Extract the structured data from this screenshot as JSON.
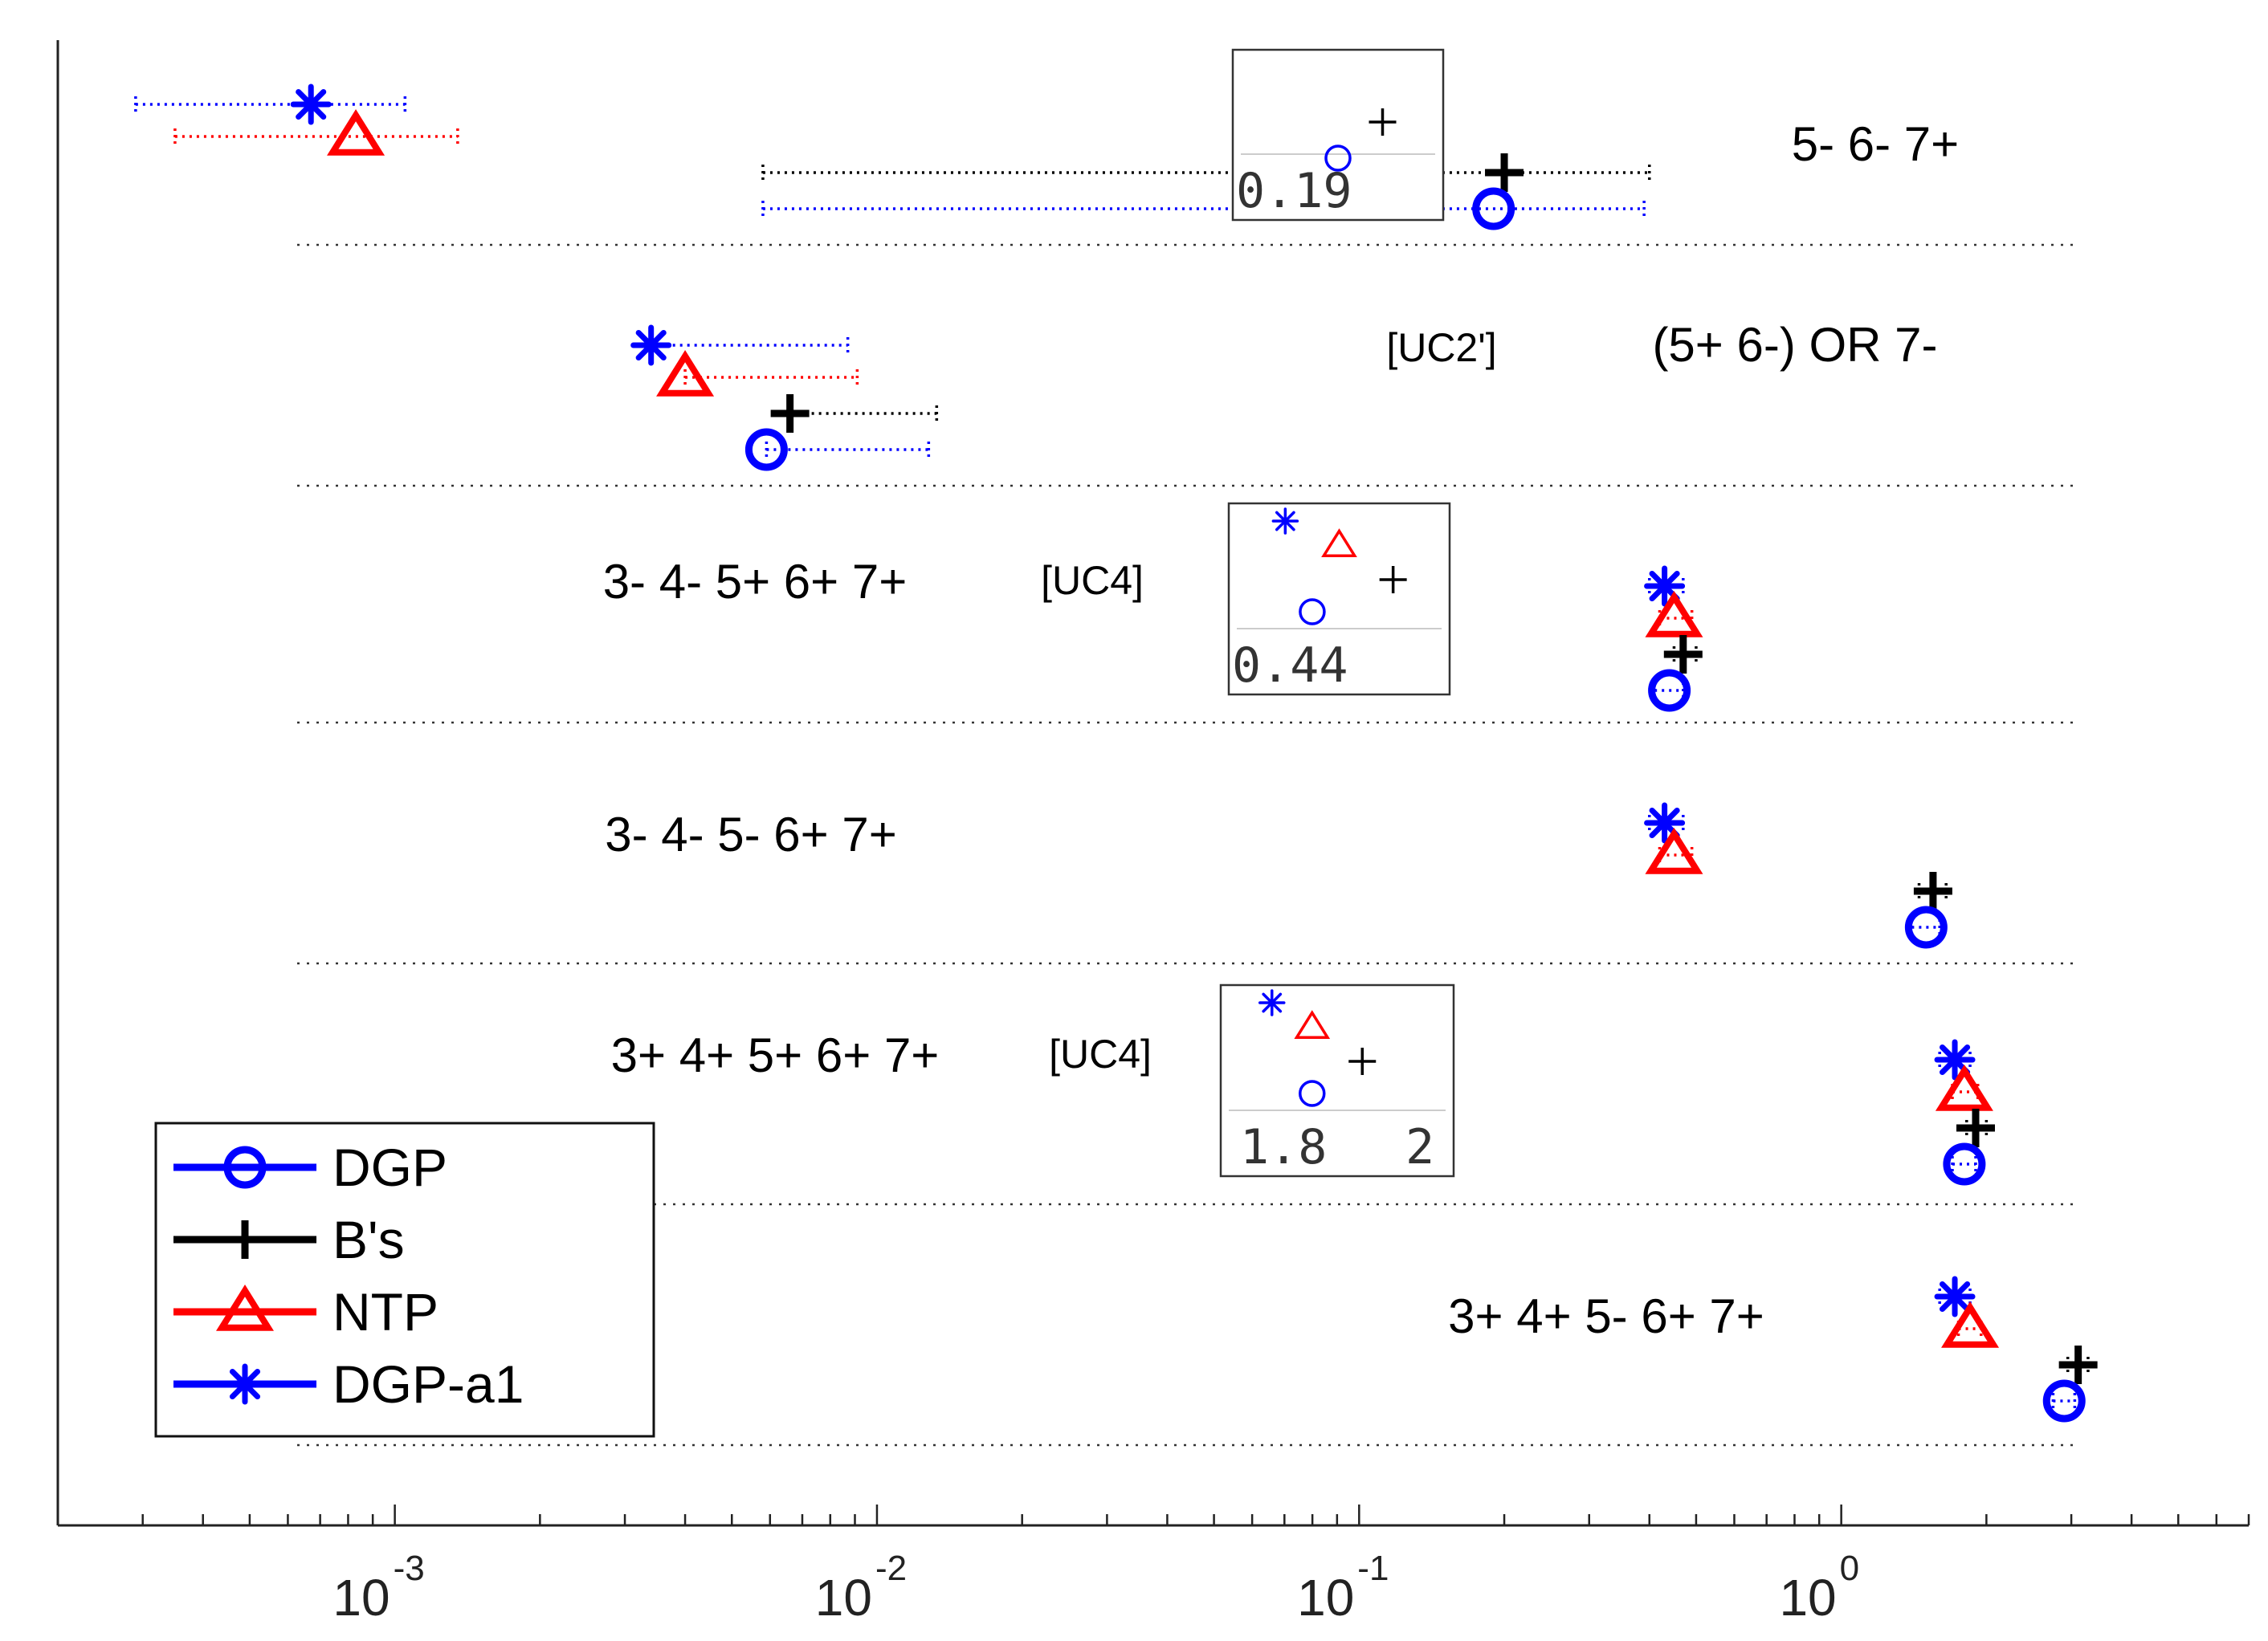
{
  "colors": {
    "DGP": "#0000ff",
    "Bs": "#000000",
    "NTP": "#ff0000",
    "DGP-a1": "#0000ff"
  },
  "chart_data": {
    "type": "scatter",
    "title": "",
    "xlabel": "",
    "ylabel": "",
    "x_scale": "log",
    "xlim": [
      0.0002,
      7
    ],
    "x_ticks": [
      {
        "value": 0.001,
        "base": "10",
        "exp": "-3"
      },
      {
        "value": 0.01,
        "base": "10",
        "exp": "-2"
      },
      {
        "value": 0.1,
        "base": "10",
        "exp": "-1"
      },
      {
        "value": 1,
        "base": "10",
        "exp": "0"
      }
    ],
    "legend": {
      "placement": "bottom-left",
      "entries": [
        {
          "key": "DGP",
          "label": "DGP",
          "marker": "circle",
          "color": "#0000ff"
        },
        {
          "key": "Bs",
          "label": "B's",
          "marker": "plus",
          "color": "#000000"
        },
        {
          "key": "NTP",
          "label": "NTP",
          "marker": "triangle",
          "color": "#ff0000"
        },
        {
          "key": "DGP-a1",
          "label": "DGP-a1",
          "marker": "asterisk",
          "color": "#0000ff"
        }
      ]
    },
    "rows": [
      {
        "label": "5- 6- 7+",
        "tag": "",
        "points": {
          "DGP-a1": 0.00067,
          "NTP": 0.00083,
          "Bs": 0.2,
          "DGP": 0.19
        },
        "ci": {
          "DGP-a1": [
            0.00029,
            0.00105
          ],
          "NTP": [
            0.00035,
            0.00135
          ],
          "Bs": [
            0.0058,
            0.4
          ],
          "DGP": [
            0.0058,
            0.39
          ]
        },
        "inset": {
          "labels": [
            "0.19"
          ],
          "points": {
            "DGP": 0.19,
            "Bs": 0.2
          }
        }
      },
      {
        "label": "(5+ 6-) OR 7-",
        "tag": "[UC2']",
        "points": {
          "DGP-a1": 0.0034,
          "NTP": 0.004,
          "Bs": 0.0066,
          "DGP": 0.0059
        },
        "ci": {
          "DGP-a1": [
            0.0034,
            0.0087
          ],
          "NTP": [
            0.004,
            0.0091
          ],
          "Bs": [
            0.0066,
            0.0133
          ],
          "DGP": [
            0.0059,
            0.0128
          ]
        },
        "inset": null
      },
      {
        "label": "3- 4- 5+ 6+ 7+",
        "tag": "[UC4]",
        "points": {
          "DGP-a1": 0.43,
          "NTP": 0.45,
          "Bs": 0.47,
          "DGP": 0.44
        },
        "ci": {
          "DGP-a1": [
            0.4,
            0.47
          ],
          "NTP": [
            0.42,
            0.49
          ],
          "Bs": [
            0.45,
            0.5
          ],
          "DGP": [
            0.41,
            0.47
          ]
        },
        "inset": {
          "labels": [
            "0.44"
          ],
          "points": {
            "DGP-a1": 0.43,
            "NTP": 0.45,
            "Bs": 0.47,
            "DGP": 0.44
          }
        }
      },
      {
        "label": "3- 4- 5- 6+ 7+",
        "tag": "",
        "points": {
          "DGP-a1": 0.43,
          "NTP": 0.45,
          "Bs": 1.55,
          "DGP": 1.5
        },
        "ci": {
          "DGP-a1": [
            0.4,
            0.47
          ],
          "NTP": [
            0.42,
            0.49
          ],
          "Bs": [
            1.45,
            1.65
          ],
          "DGP": [
            1.4,
            1.6
          ]
        },
        "inset": null
      },
      {
        "label": "3+ 4+ 5+ 6+ 7+",
        "tag": "[UC4]",
        "points": {
          "DGP-a1": 1.72,
          "NTP": 1.8,
          "Bs": 1.9,
          "DGP": 1.8
        },
        "ci": {
          "DGP-a1": [
            1.6,
            1.85
          ],
          "NTP": [
            1.7,
            1.92
          ],
          "Bs": [
            1.82,
            2.0
          ],
          "DGP": [
            1.7,
            1.9
          ]
        },
        "inset": {
          "labels": [
            "1.8",
            "2"
          ],
          "points": {
            "DGP-a1": 1.72,
            "NTP": 1.8,
            "Bs": 1.9,
            "DGP": 1.8
          }
        }
      },
      {
        "label": "3+ 4+ 5- 6+ 7+",
        "tag": "",
        "points": {
          "DGP-a1": 1.72,
          "NTP": 1.85,
          "Bs": 3.1,
          "DGP": 2.9
        },
        "ci": {
          "DGP-a1": [
            1.6,
            1.85
          ],
          "NTP": [
            1.75,
            1.95
          ],
          "Bs": [
            2.95,
            3.25
          ],
          "DGP": [
            2.75,
            3.05
          ]
        },
        "inset": null
      }
    ]
  }
}
